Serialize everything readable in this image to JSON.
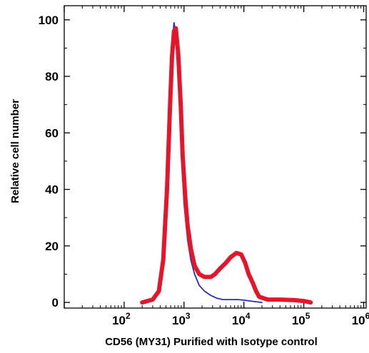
{
  "chart_data": {
    "type": "line",
    "title": "",
    "xlabel": "CD56 (MY31) Purified with Isotype control",
    "ylabel": "Relative cell number",
    "xscale": "log",
    "xlim": [
      10,
      1100000
    ],
    "ylim": [
      -2,
      105
    ],
    "yticks": [
      0,
      20,
      40,
      60,
      80,
      100
    ],
    "xticks": [
      {
        "base": "10",
        "exp": "2",
        "value": 100
      },
      {
        "base": "10",
        "exp": "3",
        "value": 1000
      },
      {
        "base": "10",
        "exp": "4",
        "value": 10000
      },
      {
        "base": "10",
        "exp": "5",
        "value": 100000
      },
      {
        "base": "10",
        "exp": "6",
        "value": 1000000
      }
    ],
    "grid": false,
    "series": [
      {
        "color": "#2a2ab4",
        "points": [
          [
            200,
            0
          ],
          [
            300,
            1
          ],
          [
            380,
            5
          ],
          [
            450,
            18
          ],
          [
            520,
            45
          ],
          [
            580,
            72
          ],
          [
            630,
            90
          ],
          [
            680,
            99
          ],
          [
            720,
            96
          ],
          [
            800,
            80
          ],
          [
            900,
            55
          ],
          [
            1000,
            35
          ],
          [
            1150,
            22
          ],
          [
            1300,
            15
          ],
          [
            1500,
            10
          ],
          [
            1800,
            6
          ],
          [
            2200,
            4
          ],
          [
            2800,
            2.5
          ],
          [
            3500,
            1.5
          ],
          [
            4500,
            1
          ],
          [
            6000,
            1
          ],
          [
            8000,
            1
          ],
          [
            10000,
            0.8
          ],
          [
            15000,
            0.3
          ],
          [
            20000,
            0
          ]
        ]
      },
      {
        "color": "#e3162b",
        "points": [
          [
            200,
            0
          ],
          [
            300,
            1
          ],
          [
            380,
            4
          ],
          [
            450,
            15
          ],
          [
            520,
            40
          ],
          [
            580,
            68
          ],
          [
            630,
            87
          ],
          [
            680,
            96
          ],
          [
            730,
            97
          ],
          [
            800,
            88
          ],
          [
            880,
            70
          ],
          [
            950,
            52
          ],
          [
            1050,
            37
          ],
          [
            1150,
            27
          ],
          [
            1300,
            19
          ],
          [
            1500,
            13
          ],
          [
            1800,
            10
          ],
          [
            2200,
            9
          ],
          [
            2800,
            9
          ],
          [
            3300,
            10
          ],
          [
            4000,
            12
          ],
          [
            5000,
            14
          ],
          [
            6000,
            16
          ],
          [
            7500,
            17.5
          ],
          [
            9000,
            17
          ],
          [
            10500,
            14
          ],
          [
            12000,
            10
          ],
          [
            14000,
            7
          ],
          [
            16000,
            4
          ],
          [
            18000,
            2
          ],
          [
            25000,
            1
          ],
          [
            40000,
            1
          ],
          [
            70000,
            0.8
          ],
          [
            100000,
            0.5
          ],
          [
            130000,
            0
          ]
        ]
      }
    ]
  }
}
